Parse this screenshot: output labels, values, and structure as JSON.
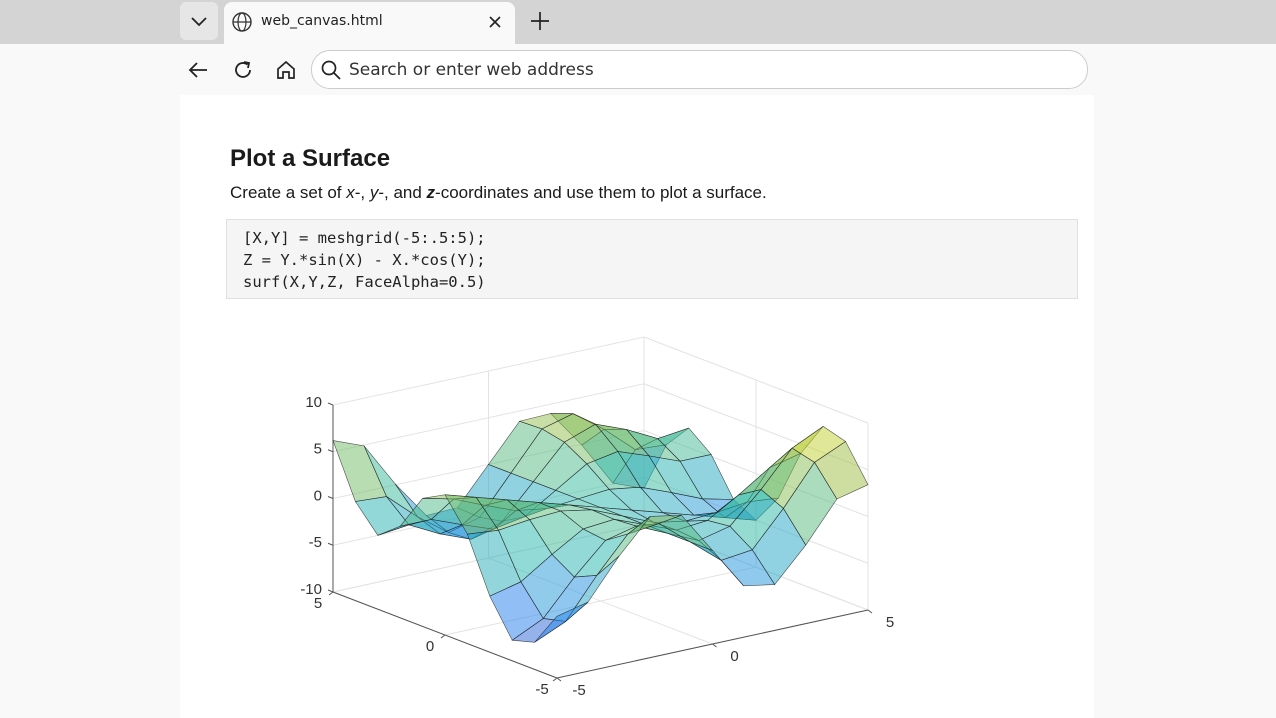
{
  "browser": {
    "tab_title": "web_canvas.html",
    "address_placeholder": "Search or enter web address"
  },
  "article": {
    "title": "Plot a Surface",
    "description": [
      "Create a set of ",
      "x",
      "-, ",
      "y",
      "-, and ",
      "z",
      "-coordinates and use them to plot a surface."
    ],
    "code": [
      "[X,Y] = meshgrid(-5:.5:5);",
      "Z = Y.*sin(X) - X.*cos(Y);",
      "surf(X,Y,Z, FaceAlpha=0.5)"
    ]
  },
  "chart_data": {
    "type": "surface",
    "x": [
      -5,
      -4,
      -3,
      -2,
      -1,
      0,
      1,
      2,
      3,
      4,
      5
    ],
    "y": [
      -5,
      -4,
      -3,
      -2,
      -1,
      0,
      1,
      2,
      3,
      4,
      5
    ],
    "z": [
      [
        -3.4,
        -2.6,
        1.6,
        5.1,
        4.5,
        0,
        -4.5,
        -5.1,
        -1.6,
        2.6,
        3.4
      ],
      [
        -7.1,
        -5.6,
        -1.4,
        2.3,
        2.7,
        0,
        -2.7,
        -2.3,
        1.4,
        5.6,
        7.1
      ],
      [
        -7.8,
        -6.2,
        -2.5,
        0.7,
        1.5,
        0,
        -1.5,
        -0.7,
        2.5,
        6.2,
        7.8
      ],
      [
        -4.0,
        -3.2,
        -1.0,
        1.0,
        1.3,
        0,
        -1.3,
        -1.0,
        1.0,
        3.2,
        4.0
      ],
      [
        1.7,
        1.4,
        1.8,
        2.0,
        1.4,
        0,
        -1.4,
        -2.0,
        -1.8,
        -1.4,
        -1.7
      ],
      [
        5,
        4,
        3,
        2,
        1,
        0,
        -1,
        -2,
        -3,
        -4,
        -5
      ],
      [
        3.7,
        2.9,
        1.5,
        0.2,
        -0.3,
        0,
        0.3,
        -0.2,
        -1.5,
        -2.9,
        -3.7
      ],
      [
        -0.2,
        -0.2,
        -1.5,
        -2.7,
        -2.1,
        0,
        2.1,
        2.7,
        1.5,
        0.2,
        0.2
      ],
      [
        -2.1,
        -1.7,
        -3.4,
        -4.7,
        -3.5,
        0,
        3.5,
        4.7,
        3.4,
        1.7,
        2.1
      ],
      [
        0.6,
        0.4,
        -2.5,
        -4.9,
        -4.0,
        0,
        4.0,
        4.9,
        2.5,
        -0.4,
        -0.6
      ],
      [
        6.2,
        4.9,
        0.1,
        -4.0,
        -3.9,
        0,
        3.9,
        4.0,
        -0.1,
        -4.9,
        -6.2
      ]
    ],
    "xlim": [
      -5,
      5
    ],
    "ylim": [
      -5,
      5
    ],
    "zlim": [
      -10,
      10
    ],
    "xticks": [
      -5,
      0,
      5
    ],
    "yticks": [
      -5,
      0,
      5
    ],
    "zticks": [
      -10,
      -5,
      0,
      5,
      10
    ],
    "grid": true,
    "face_alpha": 0.5
  }
}
